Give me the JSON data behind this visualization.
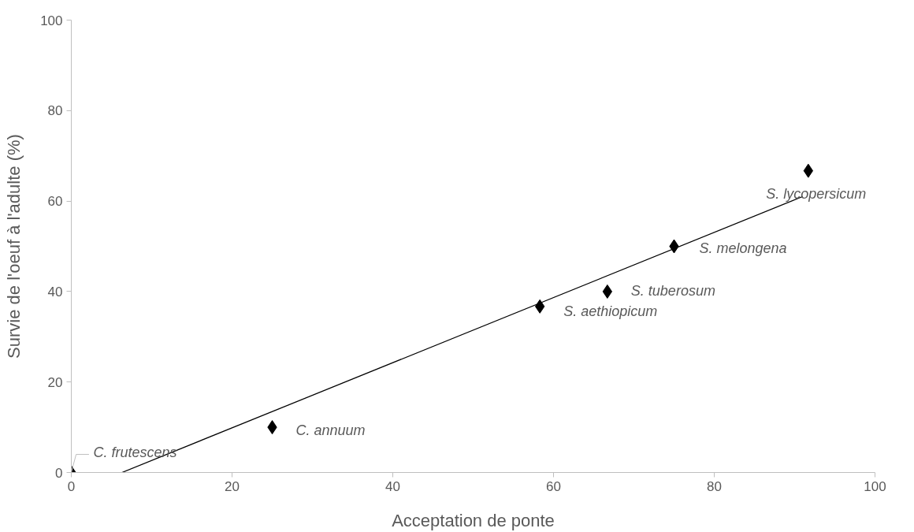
{
  "chart_data": {
    "type": "scatter",
    "xlabel": "Acceptation de ponte",
    "ylabel": "Survie de l'oeuf à l'adulte (%)",
    "xlim": [
      0,
      100
    ],
    "ylim": [
      0,
      100
    ],
    "xticks": [
      0,
      20,
      40,
      60,
      80,
      100
    ],
    "yticks": [
      0,
      20,
      40,
      60,
      80,
      100
    ],
    "grid": false,
    "marker": "diamond",
    "series": [
      {
        "color": "#000000",
        "x": [
          0,
          25,
          58.3,
          66.7,
          75,
          91.7
        ],
        "values": [
          0,
          10,
          36.7,
          40,
          50,
          66.7
        ]
      },
      {
        "type": "line",
        "color": "#000000",
        "x": [
          6.3,
          91
        ],
        "values": [
          0,
          61
        ],
        "marker": "none"
      }
    ],
    "annotations": [
      {
        "text": "C. frutescens",
        "x": 0,
        "y": 0
      },
      {
        "text": "C. annuum",
        "x": 25,
        "y": 10
      },
      {
        "text": "S. aethiopicum",
        "x": 58.3,
        "y": 36.7
      },
      {
        "text": "S. tuberosum",
        "x": 66.7,
        "y": 40
      },
      {
        "text": "S. melongena",
        "x": 75,
        "y": 50
      },
      {
        "text": "S. lycopersicum",
        "x": 91.7,
        "y": 66.7
      }
    ]
  }
}
